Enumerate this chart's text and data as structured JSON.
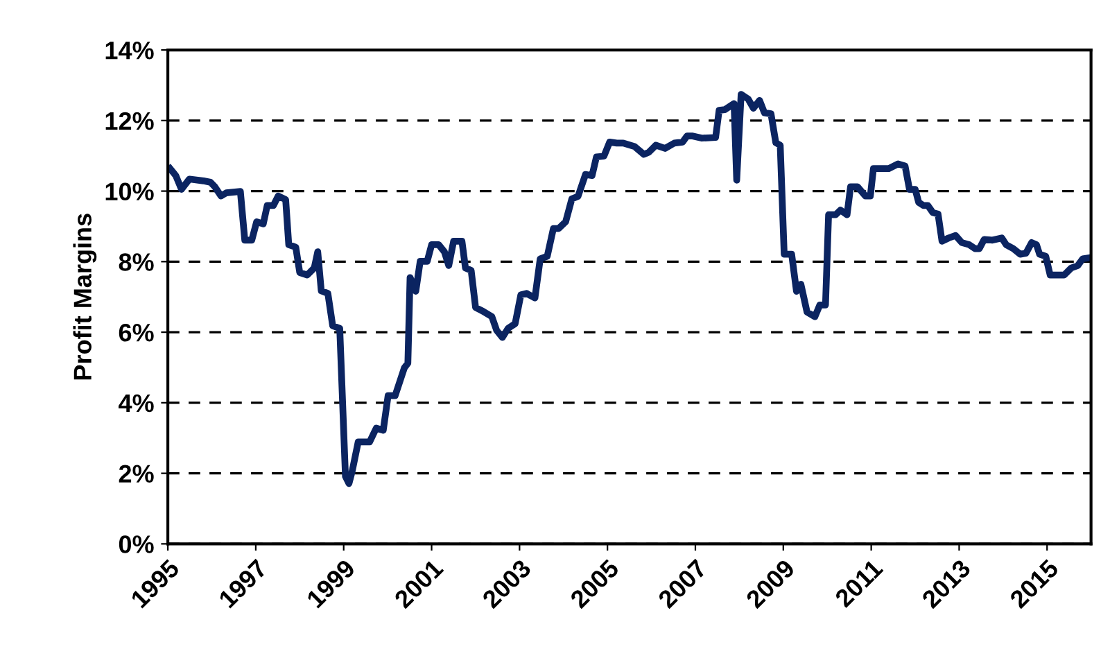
{
  "chart_data": {
    "type": "line",
    "ylabel": "Profit Margins",
    "x": [
      1995.05,
      1995.18,
      1995.31,
      1995.49,
      1995.81,
      1995.97,
      1996.07,
      1996.21,
      1996.33,
      1996.65,
      1996.75,
      1996.91,
      1997.02,
      1997.17,
      1997.26,
      1997.4,
      1997.51,
      1997.68,
      1997.75,
      1997.91,
      1998.0,
      1998.17,
      1998.33,
      1998.41,
      1998.49,
      1998.64,
      1998.75,
      1998.91,
      1999.04,
      1999.12,
      1999.19,
      1999.33,
      1999.59,
      1999.74,
      1999.9,
      2000.01,
      2000.17,
      2000.38,
      2000.46,
      2000.51,
      2000.64,
      2000.74,
      2000.9,
      2001.0,
      2001.16,
      2001.29,
      2001.39,
      2001.5,
      2001.69,
      2001.77,
      2001.9,
      2002.0,
      2002.16,
      2002.37,
      2002.48,
      2002.61,
      2002.74,
      2002.9,
      2003.03,
      2003.16,
      2003.35,
      2003.47,
      2003.63,
      2003.77,
      2003.89,
      2004.05,
      2004.19,
      2004.33,
      2004.5,
      2004.65,
      2004.75,
      2004.92,
      2005.05,
      2005.21,
      2005.36,
      2005.62,
      2005.83,
      2005.94,
      2006.1,
      2006.31,
      2006.52,
      2006.71,
      2006.81,
      2006.94,
      2007.15,
      2007.46,
      2007.54,
      2007.67,
      2007.88,
      2007.94,
      2008.04,
      2008.2,
      2008.32,
      2008.46,
      2008.57,
      2008.72,
      2008.83,
      2008.93,
      2009.02,
      2009.19,
      2009.3,
      2009.4,
      2009.54,
      2009.72,
      2009.83,
      2009.96,
      2010.03,
      2010.19,
      2010.3,
      2010.45,
      2010.53,
      2010.69,
      2010.87,
      2010.98,
      2011.05,
      2011.4,
      2011.61,
      2011.77,
      2011.87,
      2012.0,
      2012.08,
      2012.19,
      2012.29,
      2012.4,
      2012.52,
      2012.61,
      2012.76,
      2012.92,
      2013.06,
      2013.23,
      2013.36,
      2013.46,
      2013.57,
      2013.76,
      2013.97,
      2014.07,
      2014.23,
      2014.39,
      2014.52,
      2014.65,
      2014.76,
      2014.83,
      2014.97,
      2015.07,
      2015.39,
      2015.55,
      2015.7,
      2015.81,
      2015.97
    ],
    "values": [
      10.64,
      10.44,
      10.05,
      10.34,
      10.29,
      10.25,
      10.12,
      9.86,
      9.95,
      9.99,
      8.61,
      8.61,
      9.13,
      9.07,
      9.59,
      9.59,
      9.86,
      9.76,
      8.48,
      8.41,
      7.69,
      7.62,
      7.82,
      8.28,
      7.17,
      7.1,
      6.18,
      6.11,
      1.91,
      1.71,
      2.04,
      2.89,
      2.89,
      3.28,
      3.22,
      4.2,
      4.2,
      4.99,
      5.12,
      7.55,
      7.16,
      8.01,
      8.01,
      8.48,
      8.48,
      8.28,
      7.89,
      8.58,
      8.58,
      7.82,
      7.75,
      6.7,
      6.6,
      6.44,
      6.05,
      5.85,
      6.11,
      6.24,
      7.06,
      7.1,
      6.97,
      8.08,
      8.15,
      8.94,
      8.94,
      9.13,
      9.78,
      9.85,
      10.47,
      10.44,
      10.97,
      10.99,
      11.39,
      11.36,
      11.36,
      11.26,
      11.04,
      11.1,
      11.3,
      11.21,
      11.36,
      11.39,
      11.56,
      11.56,
      11.5,
      11.52,
      12.29,
      12.31,
      12.48,
      10.31,
      12.74,
      12.61,
      12.35,
      12.57,
      12.22,
      12.19,
      11.37,
      11.3,
      8.21,
      8.21,
      7.16,
      7.36,
      6.57,
      6.44,
      6.77,
      6.77,
      9.33,
      9.33,
      9.46,
      9.33,
      10.12,
      10.12,
      9.86,
      9.86,
      10.64,
      10.64,
      10.77,
      10.71,
      10.05,
      10.05,
      9.68,
      9.59,
      9.59,
      9.39,
      9.35,
      8.58,
      8.67,
      8.74,
      8.54,
      8.48,
      8.37,
      8.37,
      8.63,
      8.61,
      8.67,
      8.48,
      8.37,
      8.21,
      8.24,
      8.54,
      8.48,
      8.21,
      8.15,
      7.62,
      7.62,
      7.82,
      7.89,
      8.08,
      8.11
    ],
    "color": "#0b2461",
    "xlim": [
      1995,
      2016
    ],
    "xticks": [
      1995,
      1997,
      1999,
      2001,
      2003,
      2005,
      2007,
      2009,
      2011,
      2013,
      2015
    ],
    "ylim": [
      0,
      14
    ],
    "yticks": [
      {
        "value": 0,
        "label": "0%"
      },
      {
        "value": 2,
        "label": "2%"
      },
      {
        "value": 4,
        "label": "4%"
      },
      {
        "value": 6,
        "label": "6%"
      },
      {
        "value": 8,
        "label": "8%"
      },
      {
        "value": 10,
        "label": "10%"
      },
      {
        "value": 12,
        "label": "12%"
      },
      {
        "value": 14,
        "label": "14%"
      }
    ],
    "grid": "y",
    "line_style": "solid",
    "marker": "none"
  }
}
